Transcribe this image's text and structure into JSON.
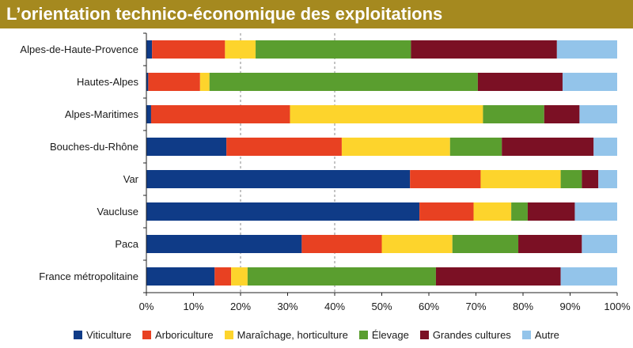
{
  "title": "L’orientation technico-économique des exploitations",
  "chart_data": {
    "type": "bar",
    "orientation": "horizontal",
    "stacked": "percent",
    "categories": [
      "Alpes-de-Haute-Provence",
      "Hautes-Alpes",
      "Alpes-Maritimes",
      "Bouches-du-Rhône",
      "Var",
      "Vaucluse",
      "Paca",
      "France métropolitaine"
    ],
    "series": [
      {
        "name": "Viticulture",
        "color": "#0f3b87",
        "values": [
          1.2,
          0.4,
          1.0,
          17,
          56,
          58,
          33,
          14.5
        ]
      },
      {
        "name": "Arboriculture",
        "color": "#e84122",
        "values": [
          15.5,
          11,
          29.5,
          24.5,
          15,
          11.5,
          17,
          3.5
        ]
      },
      {
        "name": "Maraîchage, horticulture",
        "color": "#fdd42c",
        "values": [
          6.5,
          2,
          41,
          23,
          17,
          8,
          15,
          3.5
        ]
      },
      {
        "name": "Élevage",
        "color": "#5a9e2f",
        "values": [
          33,
          57,
          13,
          11,
          4.5,
          3.5,
          14,
          40
        ]
      },
      {
        "name": "Grandes cultures",
        "color": "#7b1024",
        "values": [
          31,
          18,
          7.5,
          19.5,
          3.5,
          10,
          13.5,
          26.5
        ]
      },
      {
        "name": "Autre",
        "color": "#93c4ea",
        "values": [
          12.8,
          11.6,
          8,
          5,
          4,
          9,
          7.5,
          12
        ]
      }
    ],
    "x_ticks": [
      "0%",
      "10%",
      "20%",
      "30%",
      "40%",
      "50%",
      "60%",
      "70%",
      "80%",
      "90%",
      "100%"
    ],
    "xlim": [
      0,
      100
    ],
    "grid": "dashed vertical lines at 20% and 40%",
    "legend_position": "bottom"
  }
}
